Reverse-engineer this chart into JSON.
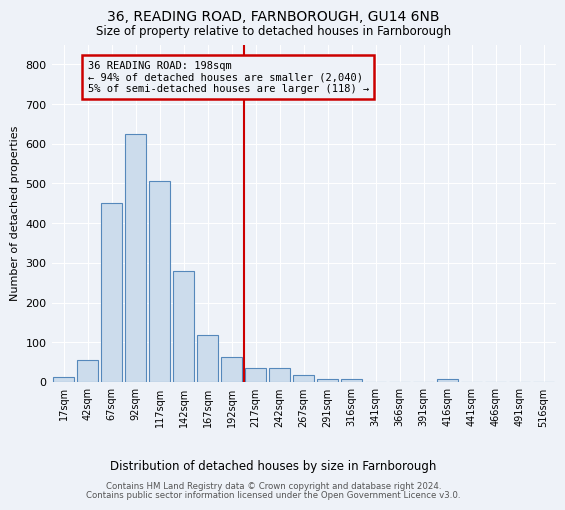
{
  "title": "36, READING ROAD, FARNBOROUGH, GU14 6NB",
  "subtitle": "Size of property relative to detached houses in Farnborough",
  "xlabel": "Distribution of detached houses by size in Farnborough",
  "ylabel": "Number of detached properties",
  "bar_labels": [
    "17sqm",
    "42sqm",
    "67sqm",
    "92sqm",
    "117sqm",
    "142sqm",
    "167sqm",
    "192sqm",
    "217sqm",
    "242sqm",
    "267sqm",
    "291sqm",
    "316sqm",
    "341sqm",
    "366sqm",
    "391sqm",
    "416sqm",
    "441sqm",
    "466sqm",
    "491sqm",
    "516sqm"
  ],
  "bar_values": [
    12,
    55,
    450,
    625,
    505,
    280,
    118,
    62,
    35,
    35,
    18,
    8,
    8,
    0,
    0,
    0,
    7,
    0,
    0,
    0,
    0
  ],
  "bar_color": "#ccdcec",
  "bar_edge_color": "#5588bb",
  "property_line_x": 7.5,
  "property_line_color": "#cc0000",
  "ylim": [
    0,
    850
  ],
  "yticks": [
    0,
    100,
    200,
    300,
    400,
    500,
    600,
    700,
    800
  ],
  "annotation_line1": "36 READING ROAD: 198sqm",
  "annotation_line2": "← 94% of detached houses are smaller (2,040)",
  "annotation_line3": "5% of semi-detached houses are larger (118) →",
  "annotation_box_color": "#cc0000",
  "footer_line1": "Contains HM Land Registry data © Crown copyright and database right 2024.",
  "footer_line2": "Contains public sector information licensed under the Open Government Licence v3.0.",
  "bg_color": "#eef2f8",
  "grid_color": "#ffffff"
}
